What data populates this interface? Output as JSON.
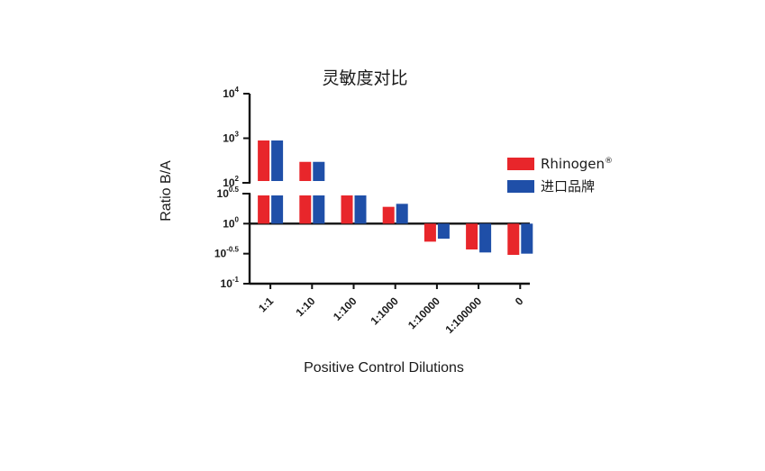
{
  "chart_data": {
    "type": "bar",
    "title": "灵敏度对比",
    "xlabel": "Positive Control Dilutions",
    "ylabel": "Ratio B/A",
    "y_scale": "log10",
    "y_axis_break": true,
    "yticks": [
      {
        "base": "10",
        "exp": "4"
      },
      {
        "base": "10",
        "exp": "3"
      },
      {
        "base": "10",
        "exp": "2"
      },
      {
        "base": "10",
        "exp": "0.5"
      },
      {
        "base": "10",
        "exp": "0"
      },
      {
        "base": "10",
        "exp": "-0.5"
      },
      {
        "base": "10",
        "exp": "-1"
      }
    ],
    "categories": [
      "1:1",
      "1:10",
      "1:100",
      "1:1000",
      "1:10000",
      "1:100000",
      "0"
    ],
    "series": [
      {
        "name": "Rhinogen®",
        "color": "#e8262b",
        "log10_values": [
          2.95,
          2.47,
          0.7,
          0.28,
          -0.3,
          -0.43,
          -0.52
        ]
      },
      {
        "name": "进口品牌",
        "color": "#1f4fa8",
        "log10_values": [
          2.95,
          2.47,
          0.7,
          0.33,
          -0.25,
          -0.48,
          -0.5
        ]
      }
    ],
    "legend": {
      "position": "right"
    },
    "grid": false
  }
}
